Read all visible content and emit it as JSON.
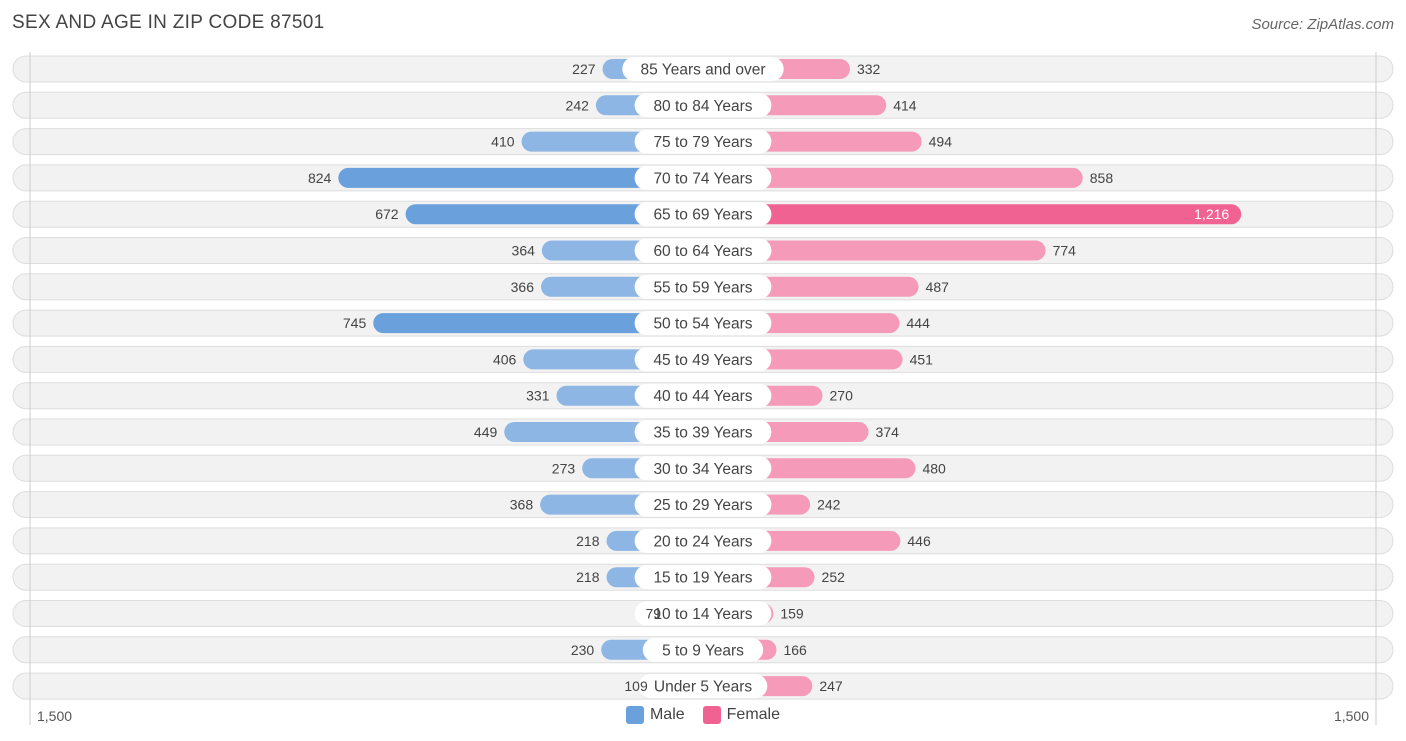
{
  "title": "SEX AND AGE IN ZIP CODE 87501",
  "source": "Source: ZipAtlas.com",
  "legend": {
    "male_label": "Male",
    "female_label": "Female"
  },
  "axis": {
    "left_label": "1,500",
    "right_label": "1,500"
  },
  "colors": {
    "male": "#8db6e4",
    "male_strong": "#6aa0dc",
    "female": "#f59ab8",
    "female_strong": "#f06292",
    "row_bg": "#f2f2f2",
    "row_border": "#dddddd"
  },
  "chart_data": {
    "type": "bar",
    "orientation": "horizontal-diverging",
    "categories": [
      "85 Years and over",
      "80 to 84 Years",
      "75 to 79 Years",
      "70 to 74 Years",
      "65 to 69 Years",
      "60 to 64 Years",
      "55 to 59 Years",
      "50 to 54 Years",
      "45 to 49 Years",
      "40 to 44 Years",
      "35 to 39 Years",
      "30 to 34 Years",
      "25 to 29 Years",
      "20 to 24 Years",
      "15 to 19 Years",
      "10 to 14 Years",
      "5 to 9 Years",
      "Under 5 Years"
    ],
    "series": [
      {
        "name": "Male",
        "values": [
          227,
          242,
          410,
          824,
          672,
          364,
          366,
          745,
          406,
          331,
          449,
          273,
          368,
          218,
          218,
          79,
          230,
          109
        ]
      },
      {
        "name": "Female",
        "values": [
          332,
          414,
          494,
          858,
          1216,
          774,
          487,
          444,
          451,
          270,
          374,
          480,
          242,
          446,
          252,
          159,
          166,
          247
        ]
      }
    ],
    "value_labels": {
      "male": [
        "227",
        "242",
        "410",
        "824",
        "672",
        "364",
        "366",
        "745",
        "406",
        "331",
        "449",
        "273",
        "368",
        "218",
        "218",
        "79",
        "230",
        "109"
      ],
      "female": [
        "332",
        "414",
        "494",
        "858",
        "1,216",
        "774",
        "487",
        "444",
        "451",
        "270",
        "374",
        "480",
        "242",
        "446",
        "252",
        "159",
        "166",
        "247"
      ]
    },
    "xlim": [
      -1500,
      1500
    ]
  }
}
